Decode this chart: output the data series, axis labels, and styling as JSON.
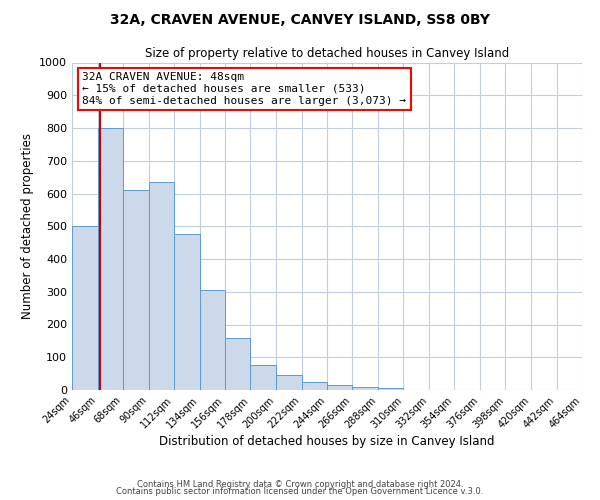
{
  "title": "32A, CRAVEN AVENUE, CANVEY ISLAND, SS8 0BY",
  "subtitle": "Size of property relative to detached houses in Canvey Island",
  "xlabel": "Distribution of detached houses by size in Canvey Island",
  "ylabel": "Number of detached properties",
  "bin_edges": [
    24,
    46,
    68,
    90,
    112,
    134,
    156,
    178,
    200,
    222,
    244,
    266,
    288,
    310,
    332,
    354,
    376,
    398,
    420,
    442,
    464
  ],
  "bin_values": [
    500,
    800,
    610,
    635,
    475,
    305,
    160,
    75,
    47,
    25,
    15,
    10,
    5,
    0,
    0,
    0,
    0,
    0,
    0,
    0
  ],
  "bar_facecolor": "#ccd9eb",
  "bar_edgecolor": "#5b9bd5",
  "property_line_x": 48,
  "property_line_color": "#cc0000",
  "ylim": [
    0,
    1000
  ],
  "yticks": [
    0,
    100,
    200,
    300,
    400,
    500,
    600,
    700,
    800,
    900,
    1000
  ],
  "annotation_title": "32A CRAVEN AVENUE: 48sqm",
  "annotation_line1": "← 15% of detached houses are smaller (533)",
  "annotation_line2": "84% of semi-detached houses are larger (3,073) →",
  "footer_line1": "Contains HM Land Registry data © Crown copyright and database right 2024.",
  "footer_line2": "Contains public sector information licensed under the Open Government Licence v.3.0.",
  "background_color": "#ffffff",
  "grid_color": "#c0cfe0"
}
